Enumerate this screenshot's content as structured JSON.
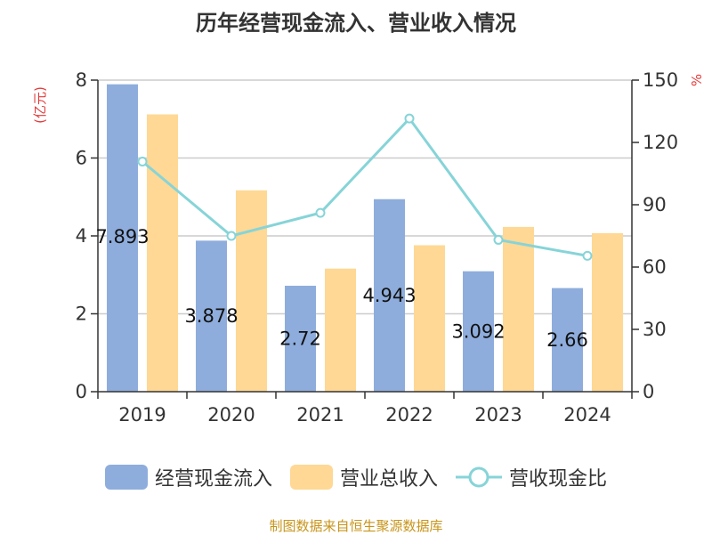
{
  "chart_data": {
    "type": "bar",
    "title": "历年经营现金流入、营业收入情况",
    "left_unit": "(亿元)",
    "right_unit": "%",
    "categories": [
      "2019",
      "2020",
      "2021",
      "2022",
      "2023",
      "2024"
    ],
    "ylim_left": [
      0,
      8
    ],
    "yticks_left": [
      "0",
      "2",
      "4",
      "6",
      "8"
    ],
    "ylim_right": [
      0,
      150
    ],
    "yticks_right": [
      "0",
      "30",
      "60",
      "90",
      "120",
      "150"
    ],
    "grid": true,
    "legend_position": "bottom",
    "series": [
      {
        "name": "经营现金流入",
        "type": "bar",
        "axis": "left",
        "values": [
          7.893,
          3.878,
          2.72,
          4.943,
          3.092,
          2.66
        ],
        "labels": [
          "7.893",
          "3.878",
          "2.72",
          "4.943",
          "3.092",
          "2.66"
        ],
        "color": "#8eaddc"
      },
      {
        "name": "营业总收入",
        "type": "bar",
        "axis": "left",
        "values": [
          7.12,
          5.17,
          3.16,
          3.76,
          4.23,
          4.07
        ],
        "color": "#fed894"
      },
      {
        "name": "营收现金比",
        "type": "line",
        "axis": "right",
        "values": [
          110.8,
          75.0,
          86.1,
          131.5,
          73.1,
          65.4
        ],
        "color": "#86d4d8"
      }
    ]
  },
  "footer": {
    "source": "制图数据来自恒生聚源数据库"
  },
  "colors": {
    "axis": "#333333",
    "grid": "#cccccc",
    "unit": "#e23b3b"
  }
}
